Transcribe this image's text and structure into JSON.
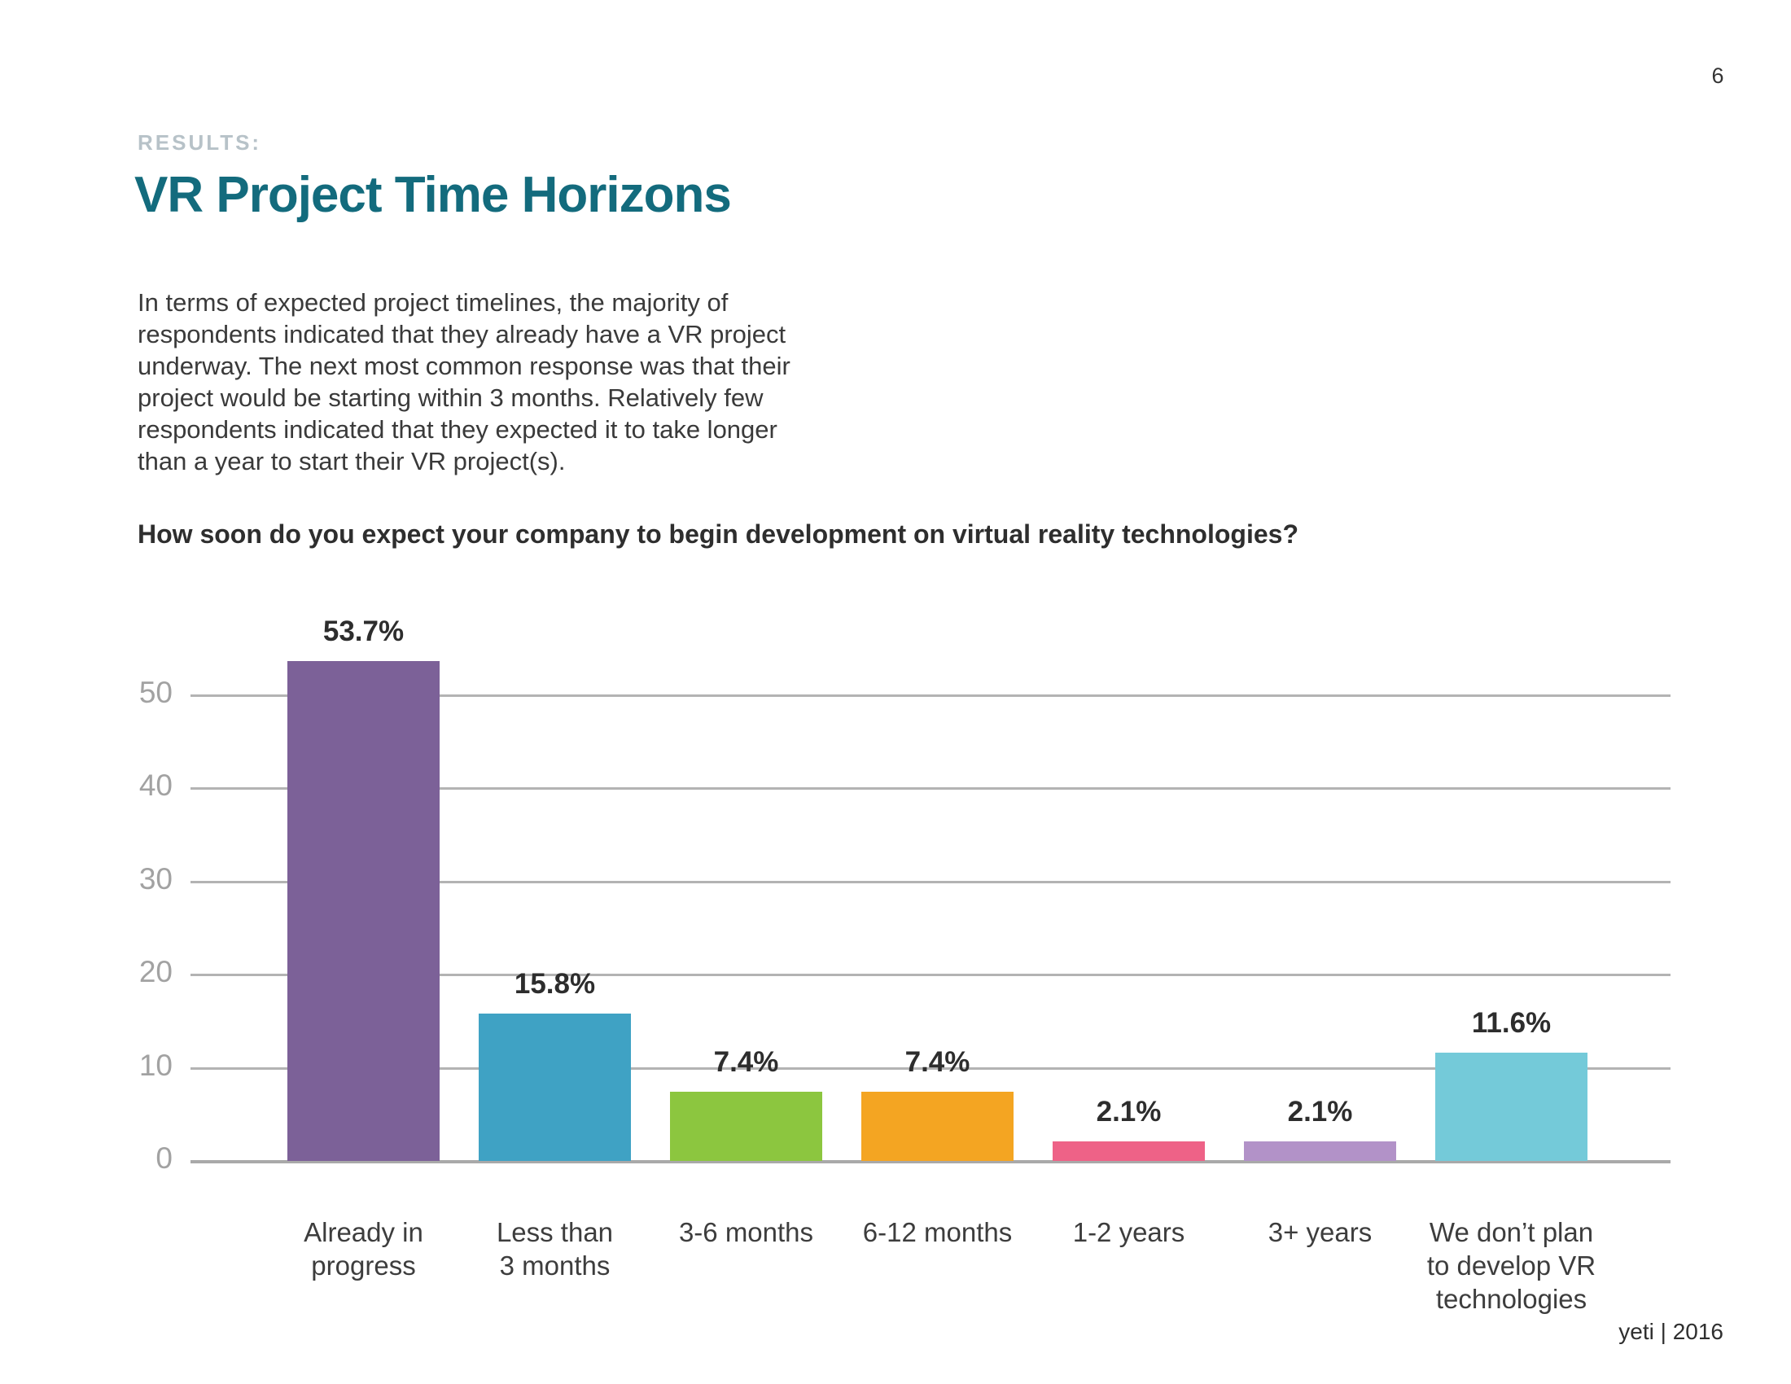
{
  "page": {
    "number": "6",
    "footer": "yeti | 2016"
  },
  "header": {
    "eyebrow": "RESULTS:",
    "title": "VR Project Time Horizons"
  },
  "intro": {
    "text": "In terms of expected project timelines, the majority of\nrespondents indicated that they already have a VR project\nunderway. The next most common response was that their\nproject would be starting within 3 months. Relatively few\nrespondents indicated that they expected it to take longer\nthan a year to start their VR project(s)."
  },
  "question": "How soon do you expect your company to begin development on virtual reality technologies?",
  "chart_data": {
    "type": "bar",
    "title": "How soon do you expect your company to begin development on virtual reality technologies?",
    "categories": [
      "Already in\nprogress",
      "Less than\n3 months",
      "3-6 months",
      "6-12 months",
      "1-2 years",
      "3+ years",
      "We don’t plan\nto develop VR\ntechnologies"
    ],
    "values": [
      53.7,
      15.8,
      7.4,
      7.4,
      2.1,
      2.1,
      11.6
    ],
    "value_labels": [
      "53.7%",
      "15.8%",
      "7.4%",
      "7.4%",
      "2.1%",
      "2.1%",
      "11.6%"
    ],
    "bar_colors": [
      "#7c6198",
      "#3fa2c4",
      "#8cc63f",
      "#f4a522",
      "#ee6287",
      "#b292c8",
      "#74cad9"
    ],
    "yticks": [
      0,
      10,
      20,
      30,
      40,
      50
    ],
    "ylim": [
      0,
      57
    ],
    "xlabel": "",
    "ylabel": "",
    "grid": "horizontal-gridlines",
    "legend": "none",
    "colors": {
      "gridline": "#b3b3b3",
      "axis_label": "#a2a2a2",
      "value_label": "#2d2d2d",
      "category_label": "#3d3d3d"
    }
  },
  "theme": {
    "title_color": "#136b7d",
    "eyebrow_color": "#b7c2c8",
    "body_color": "#3a3a3a"
  }
}
